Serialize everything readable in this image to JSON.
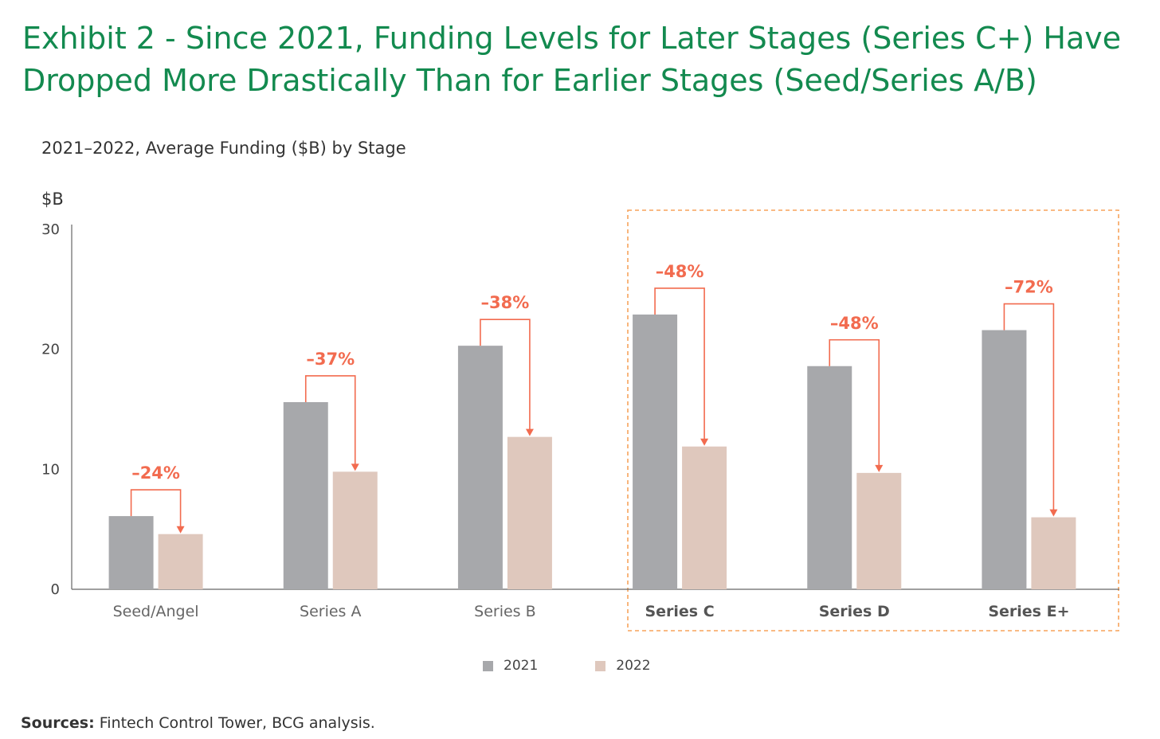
{
  "title_line1": "Exhibit 2 - Since 2021, Funding Levels for Later Stages (Series C+) Have",
  "title_line2": "Dropped More Drastically Than for Earlier Stages (Seed/Series A/B)",
  "sources_label": "Sources:",
  "sources_text": " Fintech Control Tower, BCG analysis.",
  "colors": {
    "title": "#138a4f",
    "bar_2021": "#a7a8ab",
    "bar_2022": "#dfc8bd",
    "accent": "#f26b4f",
    "highlight_box": "#f7a35c"
  },
  "chart_data": {
    "type": "bar",
    "title": "2021–2022, Average Funding ($B) by Stage",
    "ylabel": "$B",
    "ylim": [
      0,
      30
    ],
    "yticks": [
      0,
      10,
      20,
      30
    ],
    "categories": [
      "Seed/Angel",
      "Series A",
      "Series B",
      "Series C",
      "Series D",
      "Series E+"
    ],
    "bold_categories": [
      "Series C",
      "Series D",
      "Series E+"
    ],
    "highlighted_group": [
      "Series C",
      "Series D",
      "Series E+"
    ],
    "series": [
      {
        "name": "2021",
        "values": [
          6.1,
          15.6,
          20.3,
          22.9,
          18.6,
          21.6
        ]
      },
      {
        "name": "2022",
        "values": [
          4.6,
          9.8,
          12.7,
          11.9,
          9.7,
          6.0
        ]
      }
    ],
    "change_labels": [
      "–24%",
      "–37%",
      "–38%",
      "–48%",
      "–48%",
      "–72%"
    ],
    "legend_position": "bottom-center",
    "grid": false
  }
}
